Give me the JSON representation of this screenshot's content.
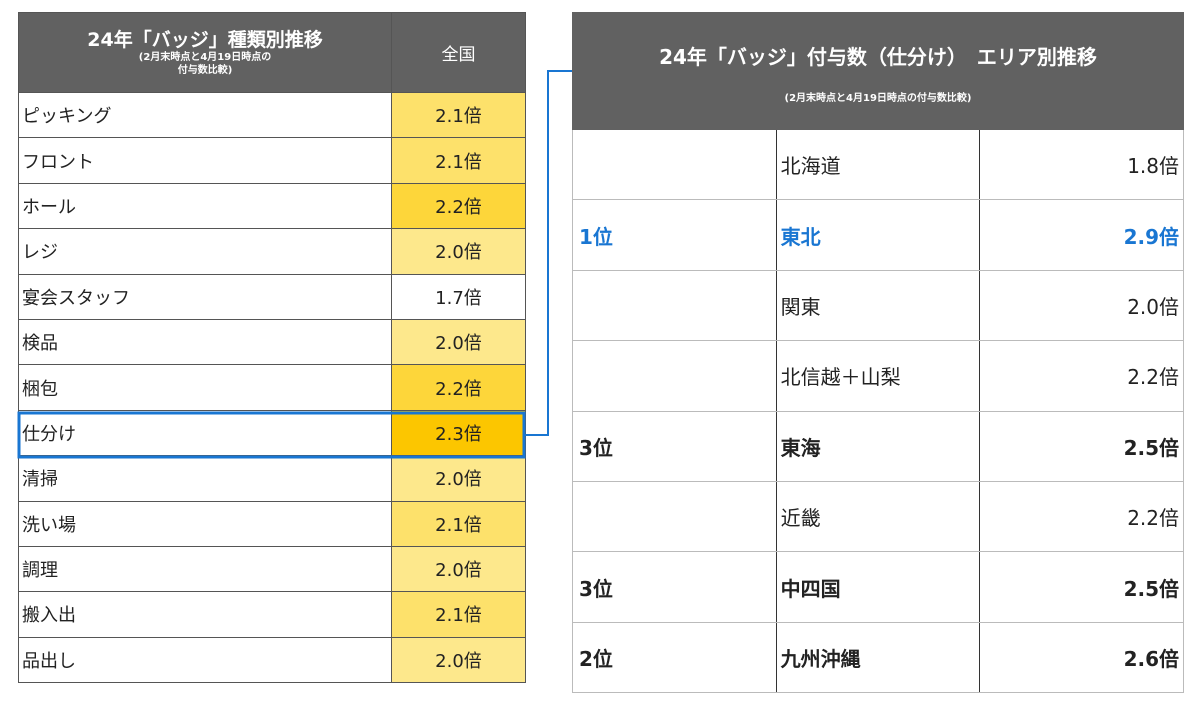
{
  "left": {
    "title": "24年「バッジ」種類別推移",
    "subtitle_line1": "(2月末時点と4月19日時点の",
    "subtitle_line2": "付与数比較)",
    "column_header": "全国",
    "rows": [
      {
        "name": "ピッキング",
        "value": "2.1倍",
        "color": "#fde16b"
      },
      {
        "name": "フロント",
        "value": "2.1倍",
        "color": "#fde16b"
      },
      {
        "name": "ホール",
        "value": "2.2倍",
        "color": "#fdd63a"
      },
      {
        "name": "レジ",
        "value": "2.0倍",
        "color": "#fde88c"
      },
      {
        "name": "宴会スタッフ",
        "value": "1.7倍",
        "color": "#ffffff"
      },
      {
        "name": "検品",
        "value": "2.0倍",
        "color": "#fde88c"
      },
      {
        "name": "梱包",
        "value": "2.2倍",
        "color": "#fdd63a"
      },
      {
        "name": "仕分け",
        "value": "2.3倍",
        "color": "#fcc600"
      },
      {
        "name": "清掃",
        "value": "2.0倍",
        "color": "#fde88c"
      },
      {
        "name": "洗い場",
        "value": "2.1倍",
        "color": "#fde16b"
      },
      {
        "name": "調理",
        "value": "2.0倍",
        "color": "#fde88c"
      },
      {
        "name": "搬入出",
        "value": "2.1倍",
        "color": "#fde16b"
      },
      {
        "name": "品出し",
        "value": "2.0倍",
        "color": "#fde88c"
      }
    ]
  },
  "right": {
    "title": "24年「バッジ」付与数（仕分け）　エリア別推移",
    "subtitle": "(2月末時点と4月19日時点の付与数比較)",
    "rows": [
      {
        "rank": "",
        "region": "北海道",
        "value": "1.8倍",
        "style": "normal"
      },
      {
        "rank": "1位",
        "region": "東北",
        "value": "2.9倍",
        "style": "top"
      },
      {
        "rank": "",
        "region": "関東",
        "value": "2.0倍",
        "style": "normal"
      },
      {
        "rank": "",
        "region": "北信越＋山梨",
        "value": "2.2倍",
        "style": "normal"
      },
      {
        "rank": "3位",
        "region": "東海",
        "value": "2.5倍",
        "style": "bold"
      },
      {
        "rank": "",
        "region": "近畿",
        "value": "2.2倍",
        "style": "normal"
      },
      {
        "rank": "3位",
        "region": "中四国",
        "value": "2.5倍",
        "style": "bold"
      },
      {
        "rank": "2位",
        "region": "九州沖縄",
        "value": "2.6倍",
        "style": "bold"
      }
    ]
  },
  "colors": {
    "header_bg": "#616161",
    "highlight_border": "#1976d2",
    "rank1_text": "#1976d2"
  }
}
